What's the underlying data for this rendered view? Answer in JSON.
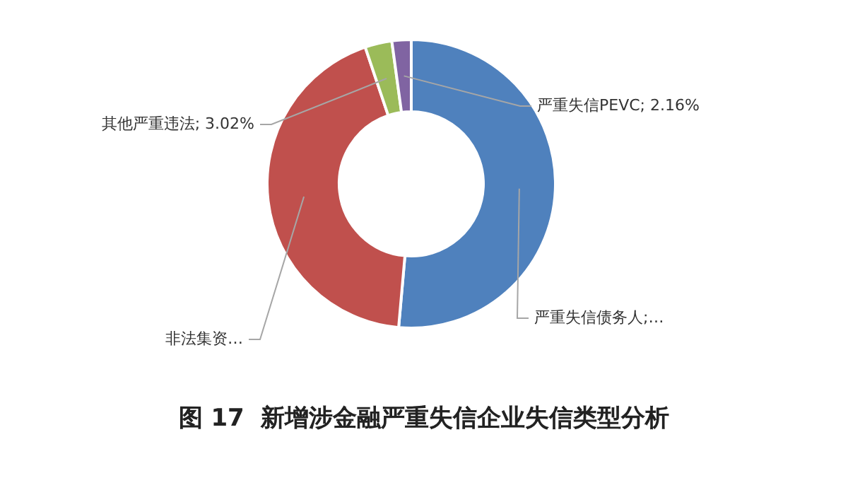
{
  "chart_data": {
    "type": "donut",
    "title": "图 17  新增涉金融严重失信企业失信类型分析",
    "categories": [
      "严重失信债务人;…",
      "非法集资…",
      "其他严重违法",
      "严重失信PEVC"
    ],
    "values": [
      51.4,
      43.42,
      3.02,
      2.16
    ],
    "colors": [
      "#4f81bd",
      "#c0504d",
      "#9bbb59",
      "#8064a2"
    ],
    "value_labels": [
      null,
      null,
      "3.02%",
      "2.16%"
    ],
    "legend": false
  }
}
